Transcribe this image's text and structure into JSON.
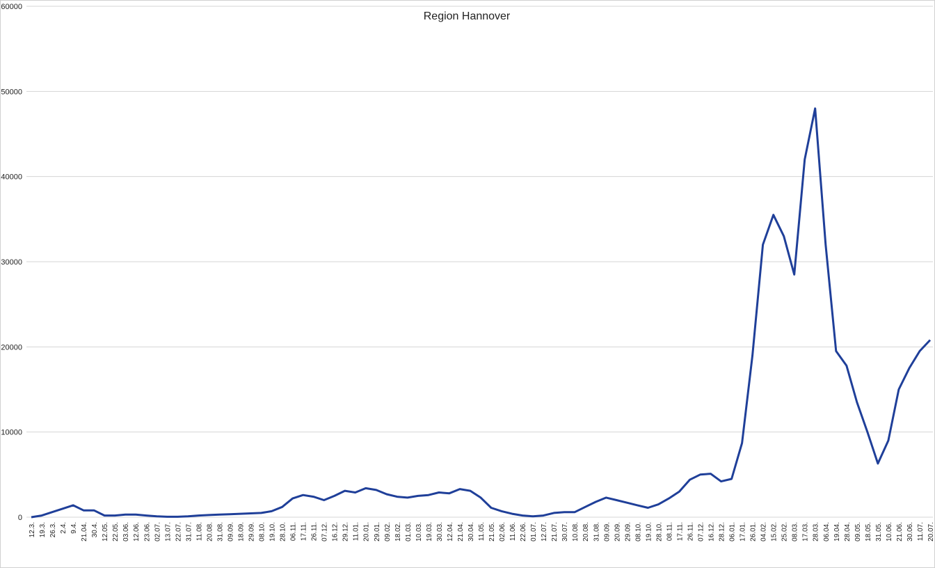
{
  "chart_data": {
    "type": "line",
    "title": "Region Hannover",
    "categories": [
      "12.3.",
      "19.3.",
      "26.3.",
      "2.4.",
      "9.4.",
      "21.04.",
      "30.4.",
      "12.05.",
      "22.05.",
      "03.06.",
      "12.06.",
      "23.06.",
      "02.07.",
      "13.07.",
      "22.07.",
      "31.07.",
      "11.08.",
      "20.08.",
      "31.08.",
      "09.09.",
      "18.09.",
      "29.09.",
      "08.10.",
      "19.10.",
      "28.10.",
      "06.11.",
      "17.11.",
      "26.11.",
      "07.12.",
      "16.12.",
      "29.12.",
      "11.01.",
      "20.01.",
      "29.01.",
      "09.02.",
      "18.02.",
      "01.03.",
      "10.03.",
      "19.03.",
      "30.03.",
      "12.04.",
      "21.04.",
      "30.04.",
      "11.05.",
      "21.05.",
      "02.06.",
      "11.06.",
      "22.06.",
      "01.07.",
      "12.07.",
      "21.07.",
      "30.07.",
      "10.08.",
      "20.08.",
      "31.08.",
      "09.09.",
      "20.09.",
      "29.09.",
      "08.10.",
      "19.10.",
      "28.10.",
      "08.11.",
      "17.11.",
      "26.11.",
      "07.12.",
      "16.12.",
      "28.12.",
      "06.01.",
      "17.01.",
      "26.01.",
      "04.02.",
      "15.02.",
      "25.02.",
      "08.03.",
      "17.03.",
      "28.03.",
      "06.04.",
      "19.04.",
      "28.04.",
      "09.05.",
      "18.05.",
      "31.05.",
      "10.06.",
      "21.06.",
      "30.06.",
      "11.07.",
      "20.07."
    ],
    "series": [
      {
        "color": "#1f3f99",
        "values": [
          0,
          200,
          600,
          1000,
          1400,
          800,
          800,
          200,
          200,
          300,
          300,
          200,
          100,
          50,
          50,
          100,
          200,
          250,
          300,
          350,
          400,
          450,
          500,
          700,
          1200,
          2200,
          2600,
          2400,
          2000,
          2500,
          3100,
          2900,
          3400,
          3200,
          2700,
          2400,
          2300,
          2500,
          2600,
          2900,
          2800,
          3300,
          3100,
          2300,
          1100,
          700,
          400,
          200,
          100,
          200,
          500,
          600,
          600,
          1200,
          1800,
          2300,
          2000,
          1700,
          1400,
          1100,
          1500,
          2200,
          3000,
          4400,
          5000,
          5100,
          4200,
          4500,
          8700,
          19000,
          32000,
          35500,
          33000,
          28500,
          42000,
          48000,
          32000,
          19500,
          17800,
          13500,
          10000,
          6300,
          9000,
          15000,
          17500,
          19500,
          20800
        ]
      }
    ],
    "ylim": [
      0,
      60000
    ],
    "yticks": [
      0,
      10000,
      20000,
      30000,
      40000,
      50000,
      60000
    ],
    "grid": true
  }
}
